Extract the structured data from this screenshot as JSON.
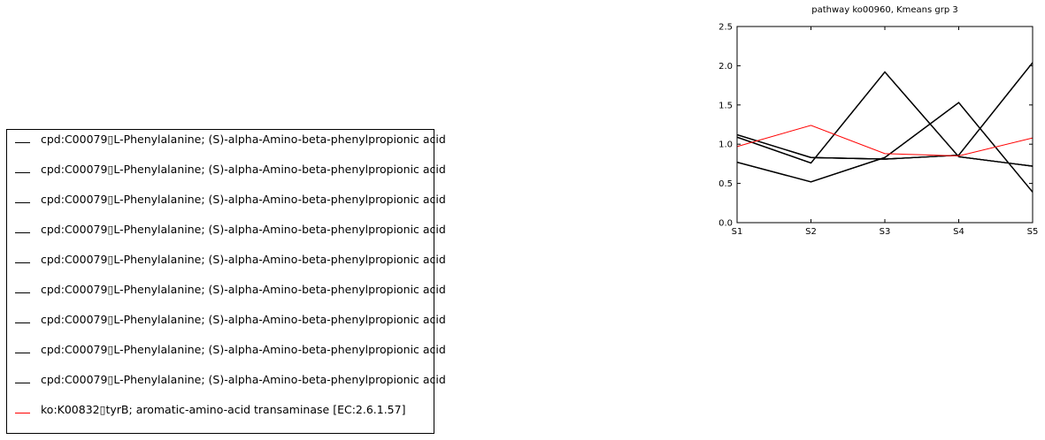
{
  "chart_data": {
    "type": "line",
    "title": "pathway ko00960, Kmeans grp 3",
    "xlabel": "",
    "ylabel": "",
    "categories": [
      "S1",
      "S2",
      "S3",
      "S4",
      "S5"
    ],
    "ylim": [
      0.0,
      2.5
    ],
    "yticks": [
      "0.0",
      "0.5",
      "1.0",
      "1.5",
      "2.0",
      "2.5"
    ],
    "grid": false,
    "legend_position": "outside-left",
    "series": [
      {
        "name": "cpd:C00079\tL-Phenylalanine; (S)-alpha-Amino-beta-phenylpropionic acid",
        "color": "#000000",
        "values": [
          1.12,
          0.83,
          0.81,
          0.86,
          2.04
        ]
      },
      {
        "name": "cpd:C00079\tL-Phenylalanine; (S)-alpha-Amino-beta-phenylpropionic acid",
        "color": "#000000",
        "values": [
          1.09,
          0.76,
          1.92,
          0.84,
          0.72
        ]
      },
      {
        "name": "cpd:C00079\tL-Phenylalanine; (S)-alpha-Amino-beta-phenylpropionic acid",
        "color": "#000000",
        "values": [
          0.77,
          0.52,
          0.83,
          1.53,
          0.39
        ]
      },
      {
        "name": "cpd:C00079\tL-Phenylalanine; (S)-alpha-Amino-beta-phenylpropionic acid",
        "color": "#000000",
        "values": [
          1.12,
          0.83,
          0.81,
          0.86,
          2.04
        ]
      },
      {
        "name": "cpd:C00079\tL-Phenylalanine; (S)-alpha-Amino-beta-phenylpropionic acid",
        "color": "#000000",
        "values": [
          1.09,
          0.76,
          1.92,
          0.84,
          0.72
        ]
      },
      {
        "name": "cpd:C00079\tL-Phenylalanine; (S)-alpha-Amino-beta-phenylpropionic acid",
        "color": "#000000",
        "values": [
          0.77,
          0.52,
          0.83,
          1.53,
          0.39
        ]
      },
      {
        "name": "cpd:C00079\tL-Phenylalanine; (S)-alpha-Amino-beta-phenylpropionic acid",
        "color": "#000000",
        "values": [
          1.12,
          0.83,
          0.81,
          0.86,
          2.04
        ]
      },
      {
        "name": "cpd:C00079\tL-Phenylalanine; (S)-alpha-Amino-beta-phenylpropionic acid",
        "color": "#000000",
        "values": [
          1.09,
          0.76,
          1.92,
          0.84,
          0.72
        ]
      },
      {
        "name": "cpd:C00079\tL-Phenylalanine; (S)-alpha-Amino-beta-phenylpropionic acid",
        "color": "#000000",
        "values": [
          0.77,
          0.52,
          0.83,
          1.53,
          0.39
        ]
      },
      {
        "name": "ko:K00832\ttyrB; aromatic-amino-acid transaminase [EC:2.6.1.57]",
        "color": "#ff0000",
        "values": [
          0.97,
          1.24,
          0.88,
          0.85,
          1.08
        ]
      }
    ]
  }
}
